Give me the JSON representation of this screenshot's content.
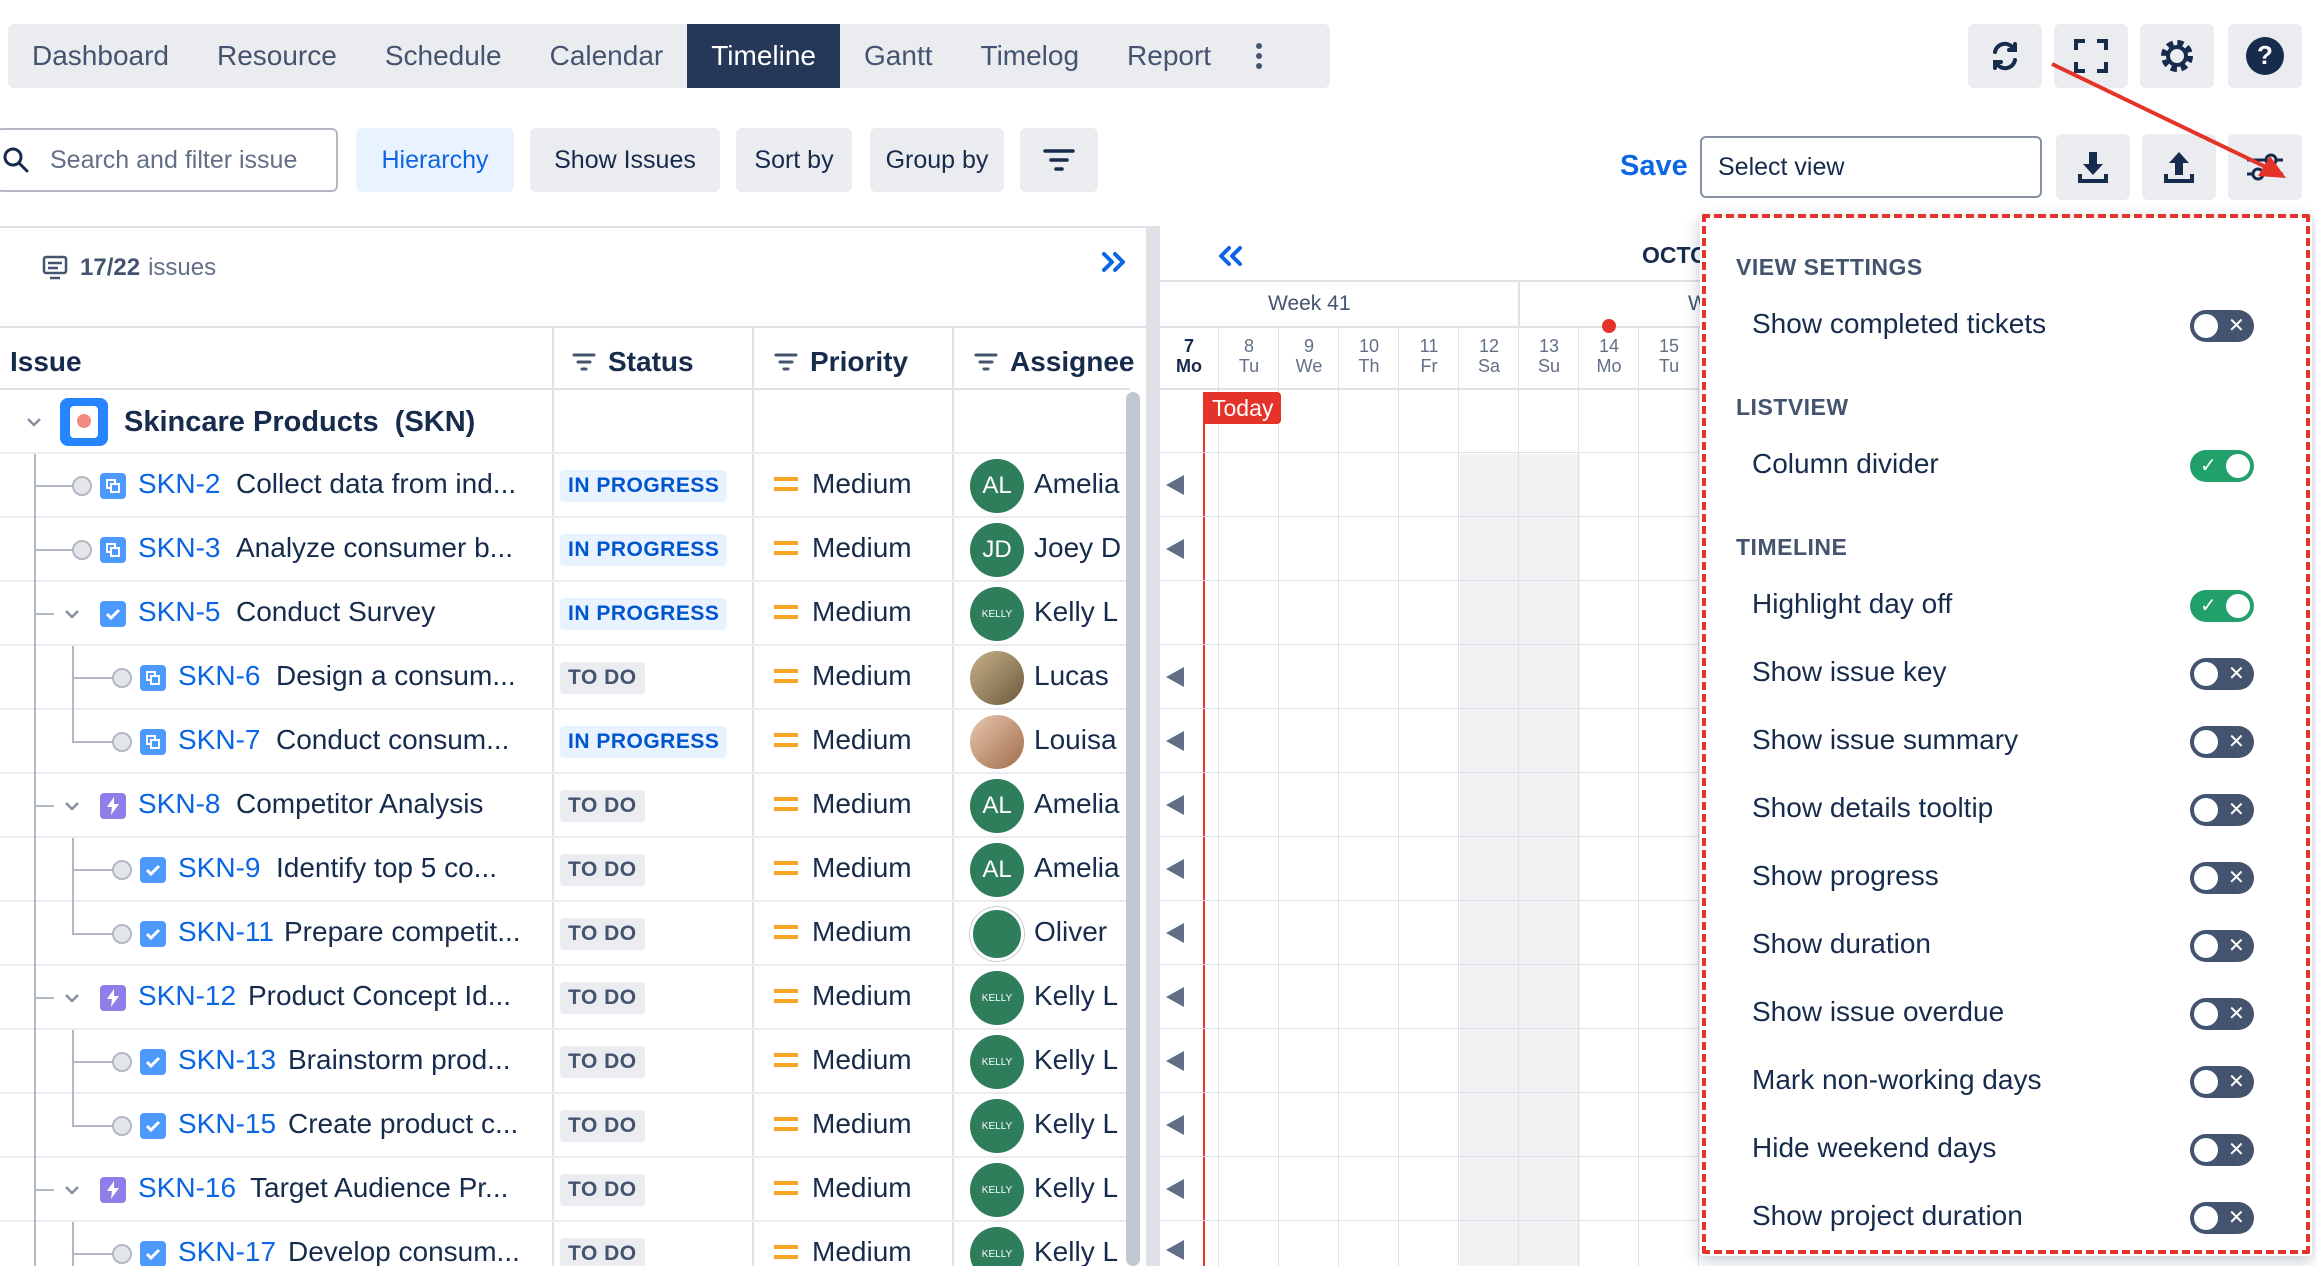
{
  "nav": {
    "tabs": [
      "Dashboard",
      "Resource",
      "Schedule",
      "Calendar",
      "Timeline",
      "Gantt",
      "Timelog",
      "Report"
    ],
    "active_tab": "Timeline"
  },
  "toolbar": {
    "search_placeholder": "Search and filter issue",
    "hierarchy": "Hierarchy",
    "show_issues": "Show Issues",
    "sort_by": "Sort by",
    "group_by": "Group by",
    "save": "Save",
    "select_view_placeholder": "Select view"
  },
  "list": {
    "issue_count": "17/22",
    "issue_count_suffix": "issues",
    "columns": {
      "issue": "Issue",
      "status": "Status",
      "priority": "Priority",
      "assignee": "Assignee"
    },
    "group": {
      "name": "Skincare Products",
      "key": "(SKN)"
    },
    "rows": [
      {
        "key": "SKN-2",
        "summary": "Collect data from ind...",
        "status": "IN PROGRESS",
        "priority": "Medium",
        "assignee": "Amelia",
        "initials": "AL",
        "type": "subtask"
      },
      {
        "key": "SKN-3",
        "summary": "Analyze consumer b...",
        "status": "IN PROGRESS",
        "priority": "Medium",
        "assignee": "Joey D",
        "initials": "JD",
        "type": "subtask"
      },
      {
        "key": "SKN-5",
        "summary": "Conduct Survey",
        "status": "IN PROGRESS",
        "priority": "Medium",
        "assignee": "Kelly L",
        "initials": "KELLY",
        "type": "task"
      },
      {
        "key": "SKN-6",
        "summary": "Design a consum...",
        "status": "TO DO",
        "priority": "Medium",
        "assignee": "Lucas",
        "initials": "",
        "type": "subtask"
      },
      {
        "key": "SKN-7",
        "summary": "Conduct consum...",
        "status": "IN PROGRESS",
        "priority": "Medium",
        "assignee": "Louisa",
        "initials": "",
        "type": "subtask"
      },
      {
        "key": "SKN-8",
        "summary": "Competitor Analysis",
        "status": "TO DO",
        "priority": "Medium",
        "assignee": "Amelia",
        "initials": "AL",
        "type": "epic"
      },
      {
        "key": "SKN-9",
        "summary": "Identify top 5 co...",
        "status": "TO DO",
        "priority": "Medium",
        "assignee": "Amelia",
        "initials": "AL",
        "type": "task"
      },
      {
        "key": "SKN-11",
        "summary": "Prepare competit...",
        "status": "TO DO",
        "priority": "Medium",
        "assignee": "Oliver",
        "initials": "",
        "type": "task"
      },
      {
        "key": "SKN-12",
        "summary": "Product Concept Id...",
        "status": "TO DO",
        "priority": "Medium",
        "assignee": "Kelly L",
        "initials": "KELLY",
        "type": "epic"
      },
      {
        "key": "SKN-13",
        "summary": "Brainstorm prod...",
        "status": "TO DO",
        "priority": "Medium",
        "assignee": "Kelly L",
        "initials": "KELLY",
        "type": "task"
      },
      {
        "key": "SKN-15",
        "summary": "Create product c...",
        "status": "TO DO",
        "priority": "Medium",
        "assignee": "Kelly L",
        "initials": "KELLY",
        "type": "task"
      },
      {
        "key": "SKN-16",
        "summary": "Target Audience Pr...",
        "status": "TO DO",
        "priority": "Medium",
        "assignee": "Kelly L",
        "initials": "KELLY",
        "type": "epic"
      },
      {
        "key": "SKN-17",
        "summary": "Develop consum...",
        "status": "TO DO",
        "priority": "Medium",
        "assignee": "Kelly L",
        "initials": "KELLY",
        "type": "task"
      }
    ]
  },
  "timeline": {
    "month": "OCTO",
    "week_label": "Week 41",
    "week_next": "W",
    "today_label": "Today",
    "days": [
      {
        "num": "7",
        "dow": "Mo"
      },
      {
        "num": "8",
        "dow": "Tu"
      },
      {
        "num": "9",
        "dow": "We"
      },
      {
        "num": "10",
        "dow": "Th"
      },
      {
        "num": "11",
        "dow": "Fr"
      },
      {
        "num": "12",
        "dow": "Sa"
      },
      {
        "num": "13",
        "dow": "Su"
      },
      {
        "num": "14",
        "dow": "Mo"
      },
      {
        "num": "15",
        "dow": "Tu"
      }
    ]
  },
  "settings": {
    "sections": [
      {
        "title": "VIEW SETTINGS",
        "options": [
          {
            "label": "Show completed tickets",
            "on": false
          }
        ]
      },
      {
        "title": "LISTVIEW",
        "options": [
          {
            "label": "Column divider",
            "on": true
          }
        ]
      },
      {
        "title": "TIMELINE",
        "options": [
          {
            "label": "Highlight day off",
            "on": true
          },
          {
            "label": "Show issue key",
            "on": false
          },
          {
            "label": "Show issue summary",
            "on": false
          },
          {
            "label": "Show details tooltip",
            "on": false
          },
          {
            "label": "Show progress",
            "on": false
          },
          {
            "label": "Show duration",
            "on": false
          },
          {
            "label": "Show issue overdue",
            "on": false
          },
          {
            "label": "Mark non-working days",
            "on": false
          },
          {
            "label": "Hide weekend days",
            "on": false
          },
          {
            "label": "Show project duration",
            "on": false
          }
        ]
      }
    ]
  },
  "colors": {
    "accent": "#0c66e4",
    "nav_active": "#253858",
    "toggle_on": "#22a06b",
    "highlight": "#e5332a"
  }
}
